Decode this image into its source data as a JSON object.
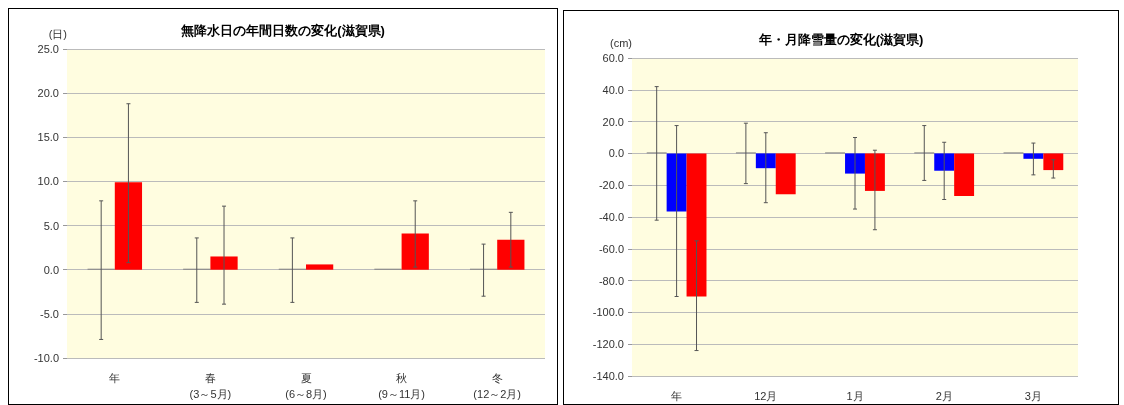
{
  "chart_data": [
    {
      "type": "bar",
      "title": "無降水日の年間日数の変化(滋賀県)",
      "ylabel": "(日)",
      "categories": [
        "年",
        "春\n(3～5月)",
        "夏\n(6～8月)",
        "秋\n(9～11月)",
        "冬\n(12～2月)"
      ],
      "ylim": [
        -10,
        25
      ],
      "yticks": [
        {
          "value": -10,
          "label": "-10.0"
        },
        {
          "value": -5,
          "label": "-5.0"
        },
        {
          "value": 0,
          "label": "0.0"
        },
        {
          "value": 5,
          "label": "5.0"
        },
        {
          "value": 10,
          "label": "10.0"
        },
        {
          "value": 15,
          "label": "15.0"
        },
        {
          "value": 20,
          "label": "20.0"
        },
        {
          "value": 25,
          "label": "25.0"
        }
      ],
      "grid": "y",
      "series": [
        {
          "color": "#808080",
          "values": [
            0,
            0,
            0,
            0,
            0
          ],
          "errors": [
            [
              -7.9,
              7.8
            ],
            [
              -3.7,
              3.6
            ],
            [
              -3.7,
              3.6
            ],
            null,
            [
              -3.0,
              2.9
            ]
          ]
        },
        {
          "color": "#ff0000",
          "values": [
            9.9,
            1.5,
            0.6,
            4.1,
            3.4
          ],
          "errors": [
            [
              0.8,
              18.8
            ],
            [
              -3.9,
              7.2
            ],
            null,
            [
              0.3,
              7.8
            ],
            [
              0.3,
              6.5
            ]
          ]
        }
      ]
    },
    {
      "type": "bar",
      "title": "年・月降雪量の変化(滋賀県)",
      "ylabel": "(cm)",
      "categories": [
        "年",
        "12月",
        "1月",
        "2月",
        "3月"
      ],
      "ylim": [
        -140,
        60
      ],
      "yticks": [
        {
          "value": -140,
          "label": "-140.0"
        },
        {
          "value": -120,
          "label": "-120.0"
        },
        {
          "value": -100,
          "label": "-100.0"
        },
        {
          "value": -80,
          "label": "-80.0"
        },
        {
          "value": -60,
          "label": "-60.0"
        },
        {
          "value": -40,
          "label": "-40.0"
        },
        {
          "value": -20,
          "label": "-20.0"
        },
        {
          "value": 0,
          "label": "0.0"
        },
        {
          "value": 20,
          "label": "20.0"
        },
        {
          "value": 40,
          "label": "40.0"
        },
        {
          "value": 60,
          "label": "60.0"
        }
      ],
      "grid": "y",
      "series": [
        {
          "color": "#808080",
          "values": [
            0,
            0,
            0,
            0,
            0
          ],
          "errors": [
            [
              -42,
              42
            ],
            [
              -19,
              19
            ],
            null,
            [
              -17,
              17.5
            ],
            null
          ]
        },
        {
          "color": "#0000ff",
          "values": [
            -36.5,
            -9.3,
            -12.7,
            -10.9,
            -3.4
          ],
          "errors": [
            [
              -90,
              17.5
            ],
            [
              -31,
              13
            ],
            [
              -35,
              10
            ],
            [
              -29,
              7
            ],
            [
              -13.5,
              6.5
            ]
          ]
        },
        {
          "color": "#ff0000",
          "values": [
            -90,
            -25.7,
            -23.6,
            -26.8,
            -10.5
          ],
          "errors": [
            [
              -124,
              -55
            ],
            null,
            [
              -48,
              2
            ],
            null,
            [
              -15.5,
              -4
            ]
          ]
        }
      ]
    }
  ]
}
